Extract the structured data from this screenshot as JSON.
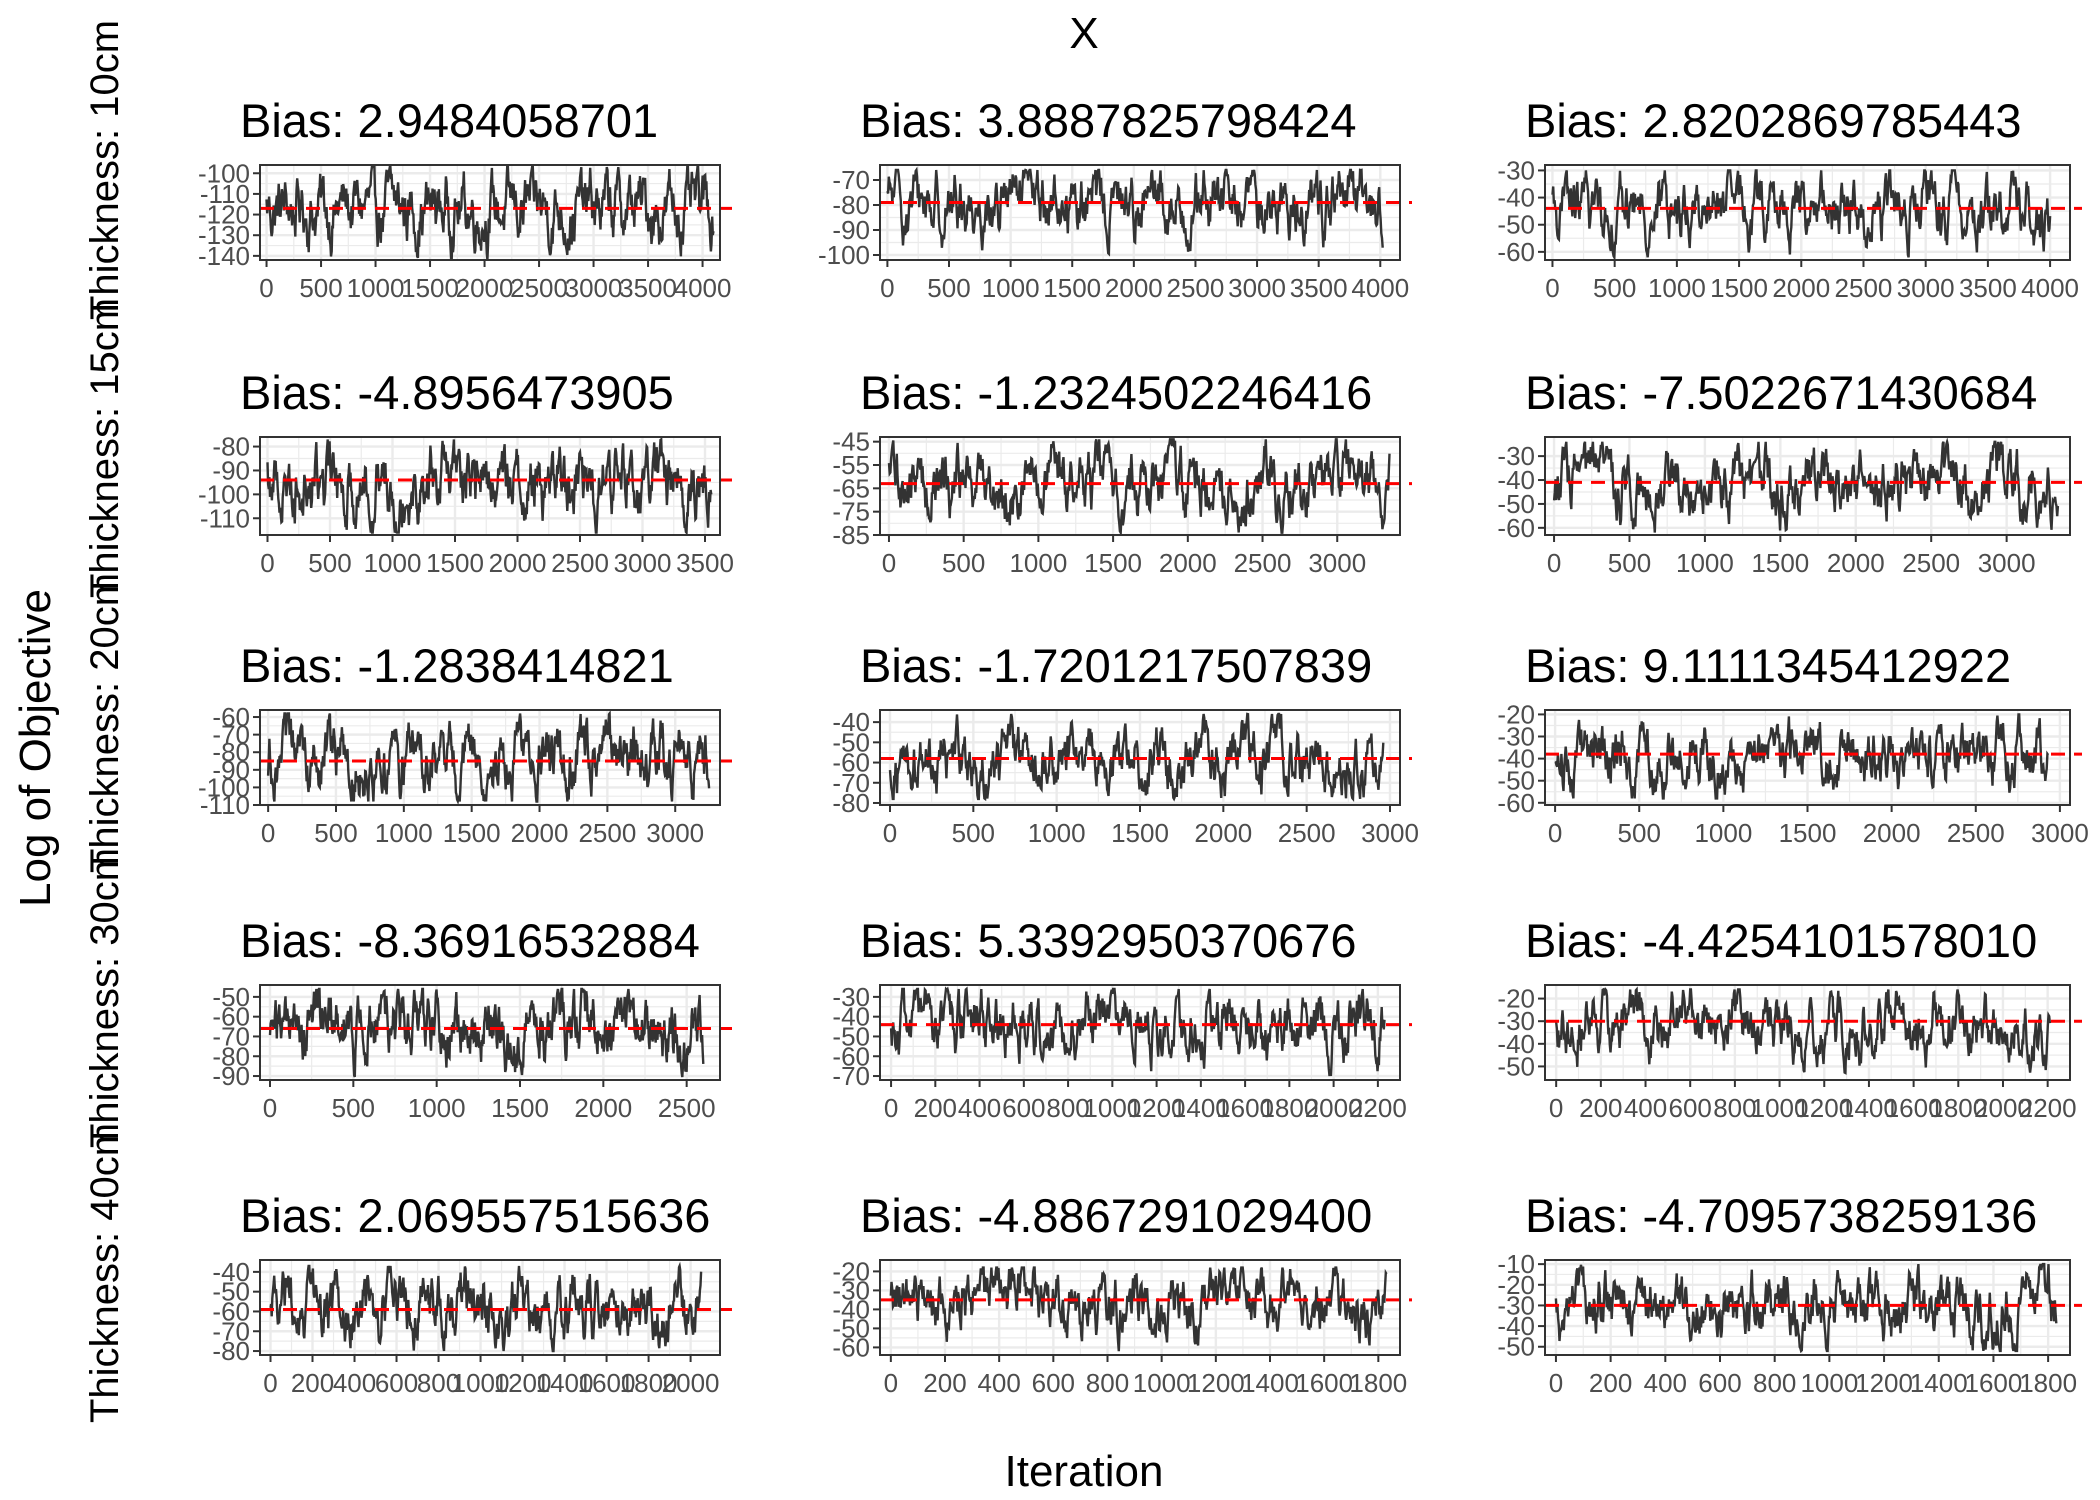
{
  "figure": {
    "title": "X",
    "xlabel": "Iteration",
    "ylabel": "Log of Objective",
    "row_labels": [
      "Thickness: 10cm",
      "Thickness: 15cm",
      "Thickness: 20cm",
      "Thickness: 30cm",
      "Thickness: 40cm"
    ],
    "colors": {
      "trace": "#333333",
      "reference": "#ff0000",
      "panel_border": "#333333",
      "grid": "#ebebeb"
    }
  },
  "chart_data": [
    {
      "type": "line",
      "title": "Bias: 2.9484058701",
      "row": 0,
      "col": 0,
      "xlim": [
        -60,
        4160
      ],
      "ylim": [
        -142,
        -96
      ],
      "xticks": [
        0,
        500,
        1000,
        1500,
        2000,
        2500,
        3000,
        3500,
        4000
      ],
      "yticks": [
        -100,
        -110,
        -120,
        -130,
        -140
      ],
      "xtick_labels": [
        "0",
        "500",
        "1000",
        "1500",
        "2000",
        "2500",
        "3000",
        "3500",
        "4000"
      ],
      "ytick_labels": [
        "-100",
        "-110",
        "-120",
        "-130",
        "-140"
      ],
      "reference_y": -117,
      "trace_length": 4100,
      "trace_mean": -117,
      "trace_range": [
        -142,
        -97
      ],
      "series": [
        {
          "values_summary": "MCMC trace, stationary around -117"
        }
      ]
    },
    {
      "type": "line",
      "title": "Bias: 3.8887825798424",
      "row": 0,
      "col": 1,
      "xlim": [
        -60,
        4160
      ],
      "ylim": [
        -102,
        -64
      ],
      "xticks": [
        0,
        500,
        1000,
        1500,
        2000,
        2500,
        3000,
        3500,
        4000
      ],
      "yticks": [
        -70,
        -80,
        -90,
        -100
      ],
      "xtick_labels": [
        "0",
        "500",
        "1000",
        "1500",
        "2000",
        "2500",
        "3000",
        "3500",
        "4000"
      ],
      "ytick_labels": [
        "-70",
        "-80",
        "-90",
        "-100"
      ],
      "reference_y": -79,
      "trace_length": 4020,
      "trace_mean": -79,
      "trace_range": [
        -102,
        -66
      ],
      "series": [
        {
          "values_summary": "MCMC trace, stationary around -79"
        }
      ]
    },
    {
      "type": "line",
      "title": "Bias: 2.8202869785443",
      "row": 0,
      "col": 2,
      "xlim": [
        -60,
        4160
      ],
      "ylim": [
        -63,
        -28
      ],
      "xticks": [
        0,
        500,
        1000,
        1500,
        2000,
        2500,
        3000,
        3500,
        4000
      ],
      "yticks": [
        -30,
        -40,
        -50,
        -60
      ],
      "xtick_labels": [
        "0",
        "500",
        "1000",
        "1500",
        "2000",
        "2500",
        "3000",
        "3500",
        "4000"
      ],
      "ytick_labels": [
        "-30",
        "-40",
        "-50",
        "-60"
      ],
      "reference_y": -44,
      "trace_length": 4000,
      "trace_mean": -44,
      "trace_range": [
        -62,
        -30
      ],
      "series": [
        {
          "values_summary": "MCMC trace, stationary around -44"
        }
      ]
    },
    {
      "type": "line",
      "title": "Bias: -4.8956473905",
      "row": 1,
      "col": 0,
      "xlim": [
        -60,
        3620
      ],
      "ylim": [
        -117,
        -76
      ],
      "xticks": [
        0,
        500,
        1000,
        1500,
        2000,
        2500,
        3000,
        3500
      ],
      "yticks": [
        -80,
        -90,
        -100,
        -110
      ],
      "xtick_labels": [
        "0",
        "500",
        "1000",
        "1500",
        "2000",
        "2500",
        "3000",
        "3500"
      ],
      "ytick_labels": [
        "-80",
        "-90",
        "-100",
        "-110"
      ],
      "reference_y": -94,
      "trace_length": 3550,
      "trace_mean": -94,
      "trace_range": [
        -116,
        -77
      ],
      "series": [
        {
          "values_summary": "MCMC trace, stationary around -94"
        }
      ]
    },
    {
      "type": "line",
      "title": "Bias: -1.2324502246416",
      "row": 1,
      "col": 1,
      "xlim": [
        -60,
        3420
      ],
      "ylim": [
        -85,
        -43
      ],
      "xticks": [
        0,
        500,
        1000,
        1500,
        2000,
        2500,
        3000
      ],
      "yticks": [
        -45,
        -55,
        -65,
        -75,
        -85
      ],
      "xtick_labels": [
        "0",
        "500",
        "1000",
        "1500",
        "2000",
        "2500",
        "3000"
      ],
      "ytick_labels": [
        "-45",
        "-55",
        "-65",
        "-75",
        "-85"
      ],
      "reference_y": -63,
      "trace_length": 3350,
      "trace_mean": -63,
      "trace_range": [
        -84,
        -44
      ],
      "series": [
        {
          "values_summary": "MCMC trace around -63 with excursion near 3000"
        }
      ]
    },
    {
      "type": "line",
      "title": "Bias: -7.5022671430684",
      "row": 1,
      "col": 2,
      "xlim": [
        -60,
        3420
      ],
      "ylim": [
        -63,
        -22
      ],
      "xticks": [
        0,
        500,
        1000,
        1500,
        2000,
        2500,
        3000
      ],
      "yticks": [
        -30,
        -40,
        -50,
        -60
      ],
      "xtick_labels": [
        "0",
        "500",
        "1000",
        "1500",
        "2000",
        "2500",
        "3000"
      ],
      "ytick_labels": [
        "-30",
        "-40",
        "-50",
        "-60"
      ],
      "reference_y": -41,
      "trace_length": 3340,
      "trace_mean": -41,
      "trace_range": [
        -62,
        -24
      ],
      "series": [
        {
          "values_summary": "MCMC trace, stationary around -41"
        }
      ]
    },
    {
      "type": "line",
      "title": "Bias: -1.2838414821",
      "row": 2,
      "col": 0,
      "xlim": [
        -60,
        3330
      ],
      "ylim": [
        -110,
        -56
      ],
      "xticks": [
        0,
        500,
        1000,
        1500,
        2000,
        2500,
        3000
      ],
      "yticks": [
        -60,
        -70,
        -80,
        -90,
        -100,
        -110
      ],
      "xtick_labels": [
        "0",
        "500",
        "1000",
        "1500",
        "2000",
        "2500",
        "3000"
      ],
      "ytick_labels": [
        "-60",
        "-70",
        "-80",
        "-90",
        "-100",
        "-110"
      ],
      "reference_y": -85,
      "trace_length": 3250,
      "trace_mean": -85,
      "trace_range": [
        -108,
        -58
      ],
      "series": [
        {
          "values_summary": "MCMC trace around -85, excursion near 1000"
        }
      ]
    },
    {
      "type": "line",
      "title": "Bias: -1.7201217507839",
      "row": 2,
      "col": 1,
      "xlim": [
        -60,
        3060
      ],
      "ylim": [
        -81,
        -34
      ],
      "xticks": [
        0,
        500,
        1000,
        1500,
        2000,
        2500,
        3000
      ],
      "yticks": [
        -40,
        -50,
        -60,
        -70,
        -80
      ],
      "xtick_labels": [
        "0",
        "500",
        "1000",
        "1500",
        "2000",
        "2500",
        "3000"
      ],
      "ytick_labels": [
        "-40",
        "-50",
        "-60",
        "-70",
        "-80"
      ],
      "reference_y": -58,
      "trace_length": 2960,
      "trace_mean": -58,
      "trace_range": [
        -78,
        -36
      ],
      "series": [
        {
          "values_summary": "MCMC trace around -58, early excursion near 250"
        }
      ]
    },
    {
      "type": "line",
      "title": "Bias: 9.1111345412922",
      "row": 2,
      "col": 2,
      "xlim": [
        -60,
        3060
      ],
      "ylim": [
        -61,
        -18
      ],
      "xticks": [
        0,
        500,
        1000,
        1500,
        2000,
        2500,
        3000
      ],
      "yticks": [
        -20,
        -30,
        -40,
        -50,
        -60
      ],
      "xtick_labels": [
        "0",
        "500",
        "1000",
        "1500",
        "2000",
        "2500",
        "3000"
      ],
      "ytick_labels": [
        "-20",
        "-30",
        "-40",
        "-50",
        "-60"
      ],
      "reference_y": -38,
      "trace_length": 2930,
      "trace_mean": -38,
      "trace_range": [
        -58,
        -20
      ],
      "series": [
        {
          "values_summary": "MCMC trace around -38, early excursion near 300"
        }
      ]
    },
    {
      "type": "line",
      "title": "Bias: -8.36916532884",
      "row": 3,
      "col": 0,
      "xlim": [
        -60,
        2700
      ],
      "ylim": [
        -92,
        -44
      ],
      "xticks": [
        0,
        500,
        1000,
        1500,
        2000,
        2500
      ],
      "yticks": [
        -50,
        -60,
        -70,
        -80,
        -90
      ],
      "xtick_labels": [
        "0",
        "500",
        "1000",
        "1500",
        "2000",
        "2500"
      ],
      "ytick_labels": [
        "-50",
        "-60",
        "-70",
        "-80",
        "-90"
      ],
      "reference_y": -66,
      "trace_length": 2600,
      "trace_mean": -66,
      "trace_range": [
        -91,
        -46
      ],
      "series": [
        {
          "values_summary": "MCMC trace, high early (~-55) then around -70"
        }
      ]
    },
    {
      "type": "line",
      "title": "Bias: 5.3392950370676",
      "row": 3,
      "col": 1,
      "xlim": [
        -50,
        2300
      ],
      "ylim": [
        -72,
        -24
      ],
      "xticks": [
        0,
        200,
        400,
        600,
        800,
        1000,
        1200,
        1400,
        1600,
        1800,
        2000,
        2200
      ],
      "yticks": [
        -30,
        -40,
        -50,
        -60,
        -70
      ],
      "xtick_labels": [
        "0",
        "200",
        "400",
        "600",
        "800",
        "1000",
        "1200",
        "1400",
        "1600",
        "1800",
        "2000",
        "2200"
      ],
      "ytick_labels": [
        "-30",
        "-40",
        "-50",
        "-60",
        "-70"
      ],
      "reference_y": -44,
      "trace_length": 2230,
      "trace_mean": -44,
      "trace_range": [
        -70,
        -26
      ],
      "series": [
        {
          "values_summary": "MCMC trace around -48, plateau near -28 from 1400 to 1850"
        }
      ]
    },
    {
      "type": "line",
      "title": "Bias: -4.4254101578010",
      "row": 3,
      "col": 2,
      "xlim": [
        -50,
        2300
      ],
      "ylim": [
        -56,
        -14
      ],
      "xticks": [
        0,
        200,
        400,
        600,
        800,
        1000,
        1200,
        1400,
        1600,
        1800,
        2000,
        2200
      ],
      "yticks": [
        -20,
        -30,
        -40,
        -50
      ],
      "xtick_labels": [
        "0",
        "200",
        "400",
        "600",
        "800",
        "1000",
        "1200",
        "1400",
        "1600",
        "1800",
        "2000",
        "2200"
      ],
      "ytick_labels": [
        "-20",
        "-30",
        "-40",
        "-50"
      ],
      "reference_y": -30,
      "trace_length": 2210,
      "trace_mean": -30,
      "trace_range": [
        -54,
        -16
      ],
      "series": [
        {
          "values_summary": "MCMC trace near -20 from 200 to 1000, then around -38"
        }
      ]
    },
    {
      "type": "line",
      "title": "Bias: 2.069557515636",
      "row": 4,
      "col": 0,
      "xlim": [
        -50,
        2140
      ],
      "ylim": [
        -82,
        -34
      ],
      "xticks": [
        0,
        200,
        400,
        600,
        800,
        1000,
        1200,
        1400,
        1600,
        1800,
        2000
      ],
      "yticks": [
        -40,
        -50,
        -60,
        -70,
        -80
      ],
      "xtick_labels": [
        "0",
        "200",
        "400",
        "600",
        "800",
        "1000",
        "1200",
        "1400",
        "1600",
        "1800",
        "2000"
      ],
      "ytick_labels": [
        "-40",
        "-50",
        "-60",
        "-70",
        "-80"
      ],
      "reference_y": -59,
      "trace_length": 2050,
      "trace_mean": -59,
      "trace_range": [
        -80,
        -37
      ],
      "series": [
        {
          "values_summary": "MCMC trace around -59, spike near 2000"
        }
      ]
    },
    {
      "type": "line",
      "title": "Bias: -4.8867291029400",
      "row": 4,
      "col": 1,
      "xlim": [
        -40,
        1880
      ],
      "ylim": [
        -64,
        -14
      ],
      "xticks": [
        0,
        200,
        400,
        600,
        800,
        1000,
        1200,
        1400,
        1600,
        1800
      ],
      "yticks": [
        -20,
        -30,
        -40,
        -50,
        -60
      ],
      "xtick_labels": [
        "0",
        "200",
        "400",
        "600",
        "800",
        "1000",
        "1200",
        "1400",
        "1600",
        "1800"
      ],
      "ytick_labels": [
        "-20",
        "-30",
        "-40",
        "-50",
        "-60"
      ],
      "reference_y": -35,
      "trace_length": 1830,
      "trace_mean": -35,
      "trace_range": [
        -62,
        -18
      ],
      "series": [
        {
          "values_summary": "MCMC trace around -35 with high plateau 450 to 750"
        }
      ]
    },
    {
      "type": "line",
      "title": "Bias: -4.7095738259136",
      "row": 4,
      "col": 2,
      "xlim": [
        -40,
        1880
      ],
      "ylim": [
        -54,
        -8
      ],
      "xticks": [
        0,
        200,
        400,
        600,
        800,
        1000,
        1200,
        1400,
        1600,
        1800
      ],
      "yticks": [
        -10,
        -20,
        -30,
        -40,
        -50
      ],
      "xtick_labels": [
        "0",
        "200",
        "400",
        "600",
        "800",
        "1000",
        "1200",
        "1400",
        "1600",
        "1800"
      ],
      "ytick_labels": [
        "-10",
        "-20",
        "-30",
        "-40",
        "-50"
      ],
      "reference_y": -30,
      "trace_length": 1830,
      "trace_mean": -30,
      "trace_range": [
        -52,
        -10
      ],
      "series": [
        {
          "values_summary": "MCMC trace starting near -12 then around -32"
        }
      ]
    }
  ]
}
